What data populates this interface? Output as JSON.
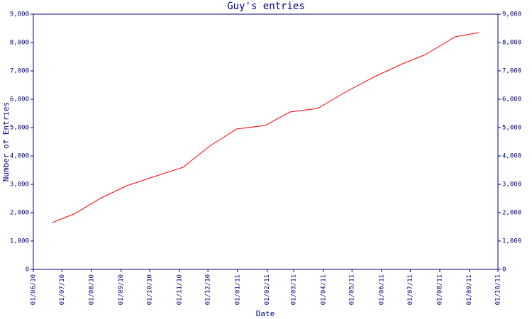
{
  "chart_data": {
    "type": "line",
    "title": "Guy's entries",
    "x_label": "Date",
    "y_label": "Number of Entries",
    "x": [
      "2010-06-21",
      "2010-07-15",
      "2010-08-10",
      "2010-09-07",
      "2010-10-06",
      "2010-11-05",
      "2010-12-03",
      "2010-12-31",
      "2011-01-30",
      "2011-02-25",
      "2011-03-26",
      "2011-04-24",
      "2011-05-25",
      "2011-06-23",
      "2011-07-17",
      "2011-08-17",
      "2011-09-11"
    ],
    "values": [
      1650,
      1975,
      2500,
      2950,
      3275,
      3600,
      4350,
      4950,
      5075,
      5550,
      5675,
      6250,
      6800,
      7250,
      7575,
      8200,
      8350
    ],
    "color": "#ff0000",
    "xlim": [
      "2010-06-01",
      "2011-10-01"
    ],
    "xticks": [
      {
        "value": "2010-06-01",
        "label": "01/06/10"
      },
      {
        "value": "2010-07-01",
        "label": "01/07/10"
      },
      {
        "value": "2010-08-01",
        "label": "01/08/10"
      },
      {
        "value": "2010-09-01",
        "label": "01/09/10"
      },
      {
        "value": "2010-10-01",
        "label": "01/10/10"
      },
      {
        "value": "2010-11-01",
        "label": "01/11/10"
      },
      {
        "value": "2010-12-01",
        "label": "01/12/10"
      },
      {
        "value": "2011-01-01",
        "label": "01/01/11"
      },
      {
        "value": "2011-02-01",
        "label": "01/02/11"
      },
      {
        "value": "2011-03-01",
        "label": "01/03/11"
      },
      {
        "value": "2011-04-01",
        "label": "01/04/11"
      },
      {
        "value": "2011-05-01",
        "label": "01/05/11"
      },
      {
        "value": "2011-06-01",
        "label": "01/06/11"
      },
      {
        "value": "2011-07-01",
        "label": "01/07/11"
      },
      {
        "value": "2011-08-01",
        "label": "01/08/11"
      },
      {
        "value": "2011-09-01",
        "label": "01/09/11"
      },
      {
        "value": "2011-10-01",
        "label": "01/10/11"
      }
    ],
    "ylim": [
      0,
      9000
    ],
    "yticks": [
      0,
      {
        "value": 1000,
        "label": "1,000"
      },
      {
        "value": 2000,
        "label": "2,000"
      },
      {
        "value": 3000,
        "label": "3,000"
      },
      {
        "value": 4000,
        "label": "4,000"
      },
      {
        "value": 5000,
        "label": "5,000"
      },
      {
        "value": 6000,
        "label": "6,000"
      },
      {
        "value": 7000,
        "label": "7,000"
      },
      {
        "value": 8000,
        "label": "8,000"
      },
      {
        "value": 9000,
        "label": "9,000"
      }
    ],
    "y2lim": [
      0,
      9000
    ],
    "y2ticks": [
      0,
      {
        "value": 1000,
        "label": "1,000"
      },
      {
        "value": 2000,
        "label": "2,000"
      },
      {
        "value": 3000,
        "label": "3,000"
      },
      {
        "value": 4000,
        "label": "4,000"
      },
      {
        "value": 5000,
        "label": "5,000"
      },
      {
        "value": 6000,
        "label": "6,000"
      },
      {
        "value": 7000,
        "label": "7,000"
      },
      {
        "value": 8000,
        "label": "8,000"
      },
      {
        "value": 9000,
        "label": "9,000"
      }
    ]
  }
}
